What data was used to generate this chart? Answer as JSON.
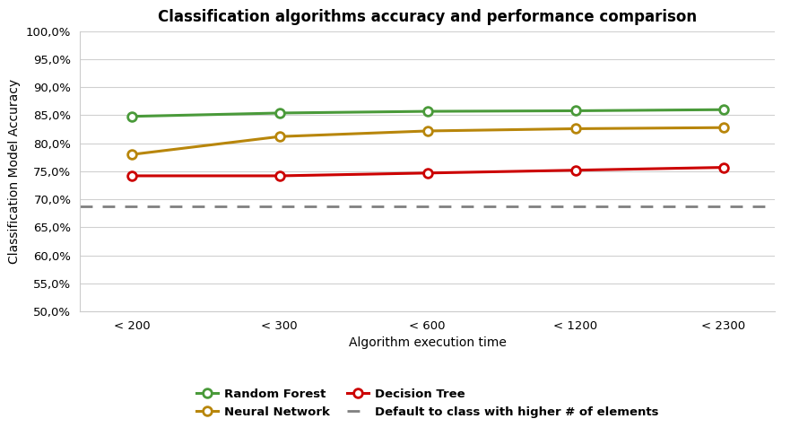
{
  "title": "Classification algorithms accuracy and performance comparison",
  "xlabel": "Algorithm execution time",
  "ylabel": "Classification Model Accuracy",
  "x_labels": [
    "< 200",
    "< 300",
    "< 600",
    "< 1200",
    "< 2300"
  ],
  "random_forest": [
    84.8,
    85.4,
    85.7,
    85.8,
    86.0
  ],
  "neural_network": [
    78.0,
    81.2,
    82.2,
    82.6,
    82.8
  ],
  "decision_tree": [
    74.2,
    74.2,
    74.7,
    75.2,
    75.7
  ],
  "default_line": 68.8,
  "rf_color": "#4a9a3a",
  "nn_color": "#b8860b",
  "dt_color": "#cc0000",
  "default_color": "#808080",
  "ylim_min": 50.0,
  "ylim_max": 100.0,
  "yticks": [
    50.0,
    55.0,
    60.0,
    65.0,
    70.0,
    75.0,
    80.0,
    85.0,
    90.0,
    95.0,
    100.0
  ],
  "legend_rf": "Random Forest",
  "legend_nn": "Neural Network",
  "legend_dt": "Decision Tree",
  "legend_default": "Default to class with higher # of elements",
  "title_fontsize": 12,
  "axis_label_fontsize": 10,
  "tick_fontsize": 9.5,
  "legend_fontsize": 9.5,
  "line_width": 2.2,
  "marker_size": 7
}
